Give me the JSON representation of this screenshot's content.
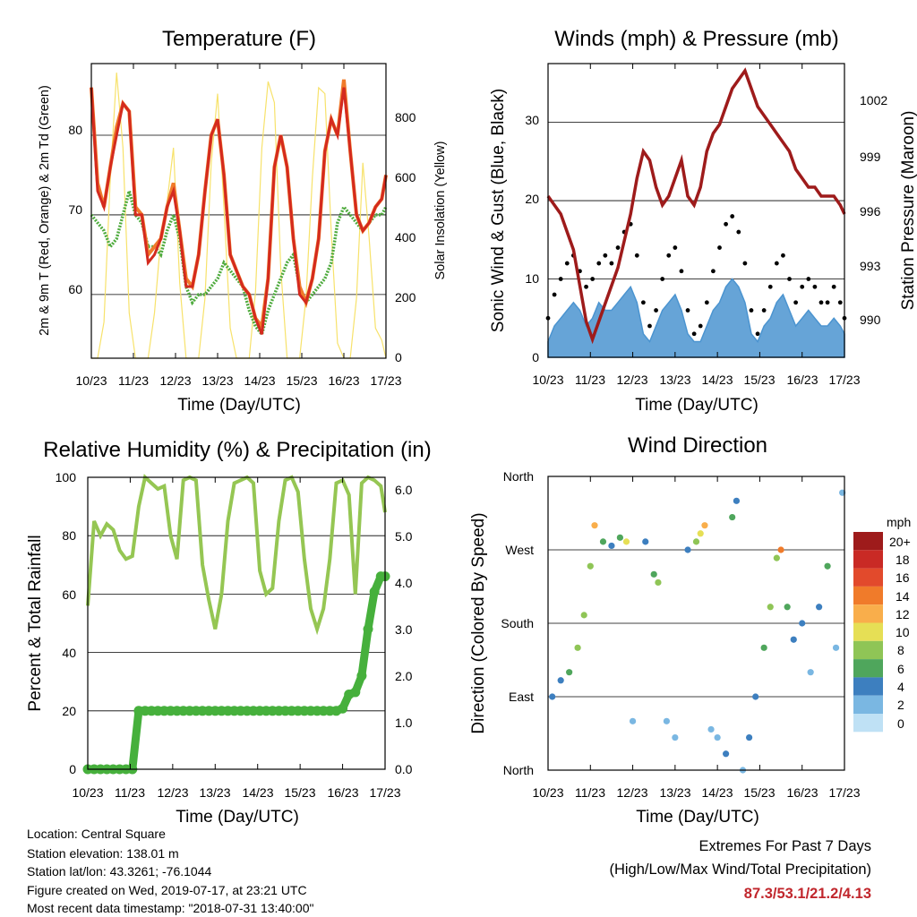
{
  "colors": {
    "temp2m": "#d42a1e",
    "temp9m": "#f07b2a",
    "dewpoint": "#4fab3e",
    "solar": "#f7e26b",
    "gust": "#000000",
    "wind": "#4b94d0",
    "pressure": "#9e1b1b",
    "rh": "#95c653",
    "precip": "#46b03c",
    "extremes_text": "#c1272d"
  },
  "panels": {
    "temperature": {
      "title": "Temperature (F)",
      "xlabel": "Time (Day/UTC)",
      "ylabel_left": "2m & 9m T (Red, Orange) & 2m Td (Green)",
      "ylabel_right": "Solar Insolation (Yellow)",
      "x_ticks": [
        "10/23",
        "11/23",
        "12/23",
        "13/23",
        "14/23",
        "15/23",
        "16/23",
        "17/23"
      ],
      "y_left_ticks": [
        "60",
        "70",
        "80"
      ],
      "y_right_ticks": [
        "0",
        "200",
        "400",
        "600",
        "800"
      ]
    },
    "winds": {
      "title": "Winds (mph) & Pressure (mb)",
      "xlabel": "Time (Day/UTC)",
      "ylabel_left": "Sonic Wind & Gust (Blue, Black)",
      "ylabel_right": "Station Pressure (Maroon)",
      "x_ticks": [
        "10/23",
        "11/23",
        "12/23",
        "13/23",
        "14/23",
        "15/23",
        "16/23",
        "17/23"
      ],
      "y_left_ticks": [
        "0",
        "10",
        "20",
        "30"
      ],
      "y_right_ticks": [
        "990",
        "993",
        "996",
        "999",
        "1002"
      ]
    },
    "humidity": {
      "title": "Relative Humidity (%) & Precipitation (in)",
      "xlabel": "Time (Day/UTC)",
      "ylabel_left": "Percent & Total Rainfall",
      "x_ticks": [
        "10/23",
        "11/23",
        "12/23",
        "13/23",
        "14/23",
        "15/23",
        "16/23",
        "17/23"
      ],
      "y_left_ticks": [
        "0",
        "20",
        "40",
        "60",
        "80",
        "100"
      ],
      "y_right_ticks": [
        "0.0",
        "1.0",
        "2.0",
        "3.0",
        "4.0",
        "5.0",
        "6.0"
      ]
    },
    "direction": {
      "title": "Wind Direction",
      "xlabel": "Time (Day/UTC)",
      "ylabel_left": "Direction (Colored By Speed)",
      "x_ticks": [
        "10/23",
        "11/23",
        "12/23",
        "13/23",
        "14/23",
        "15/23",
        "16/23",
        "17/23"
      ],
      "y_left_ticks": [
        "North",
        "East",
        "South",
        "West",
        "North"
      ],
      "legend_title": "mph",
      "legend_labels": [
        "20+",
        "18",
        "16",
        "14",
        "12",
        "10",
        "8",
        "6",
        "4",
        "2",
        "0"
      ],
      "legend_colors": [
        "#9e1b1b",
        "#c92a25",
        "#e24a2c",
        "#f07b2a",
        "#f9ae4b",
        "#e6df55",
        "#8fc556",
        "#4fa65c",
        "#3d7fbf",
        "#7ab7e2",
        "#bfe1f5"
      ]
    }
  },
  "chart_data": [
    {
      "type": "line",
      "title": "Temperature (F)",
      "xlabel": "Time (Day/UTC)",
      "ylabel": "2m & 9m T (Red, Orange) & 2m Td (Green)",
      "ylabel_right": "Solar Insolation (Yellow)",
      "xlim": [
        "10/23",
        "17/23"
      ],
      "ylim": [
        52,
        89
      ],
      "ylim_right": [
        0,
        980
      ],
      "x_days": [
        0,
        0.15,
        0.3,
        0.45,
        0.6,
        0.75,
        0.9,
        1.05,
        1.2,
        1.35,
        1.5,
        1.65,
        1.8,
        1.95,
        2.1,
        2.25,
        2.4,
        2.55,
        2.7,
        2.85,
        3.0,
        3.15,
        3.3,
        3.45,
        3.6,
        3.75,
        3.9,
        4.05,
        4.2,
        4.35,
        4.5,
        4.65,
        4.8,
        4.95,
        5.1,
        5.25,
        5.4,
        5.55,
        5.7,
        5.85,
        6.0,
        6.15,
        6.3,
        6.45,
        6.6,
        6.75,
        6.9,
        7.0
      ],
      "series": [
        {
          "name": "2m T",
          "values": [
            86,
            73,
            71,
            76,
            80,
            84,
            83,
            70,
            70,
            64,
            65,
            67,
            71,
            73,
            68,
            61,
            61,
            65,
            73,
            80,
            82,
            75,
            65,
            63,
            61,
            60,
            57,
            55,
            62,
            76,
            80,
            76,
            67,
            60,
            59,
            62,
            67,
            78,
            82,
            80,
            86,
            78,
            70,
            68,
            69,
            71,
            72,
            75
          ]
        },
        {
          "name": "9m T",
          "values": [
            86,
            74,
            71,
            76,
            81,
            84,
            83,
            71,
            70,
            65,
            66,
            67,
            71,
            74,
            68,
            62,
            61,
            65,
            73,
            80,
            82,
            75,
            65,
            63,
            61,
            60,
            57,
            56,
            62,
            76,
            80,
            76,
            67,
            61,
            59,
            62,
            67,
            78,
            82,
            80,
            87,
            78,
            70,
            68,
            69,
            71,
            72,
            75
          ]
        },
        {
          "name": "2m Td",
          "values": [
            70,
            69,
            68,
            66,
            67,
            70,
            73,
            70,
            69,
            66,
            66,
            65,
            68,
            70,
            67,
            61,
            59,
            60,
            60,
            61,
            62,
            64,
            63,
            62,
            61,
            58,
            56,
            55,
            58,
            60,
            62,
            64,
            65,
            61,
            59,
            60,
            61,
            62,
            64,
            69,
            71,
            70,
            69,
            68,
            69,
            70,
            70,
            71
          ]
        },
        {
          "name": "Solar Insolation",
          "axis": "right",
          "values": [
            0,
            0,
            120,
            600,
            950,
            700,
            150,
            0,
            0,
            0,
            150,
            400,
            520,
            700,
            250,
            0,
            0,
            0,
            200,
            650,
            880,
            500,
            100,
            0,
            0,
            0,
            220,
            700,
            920,
            850,
            300,
            0,
            0,
            0,
            200,
            600,
            900,
            880,
            420,
            50,
            0,
            0,
            200,
            650,
            400,
            100,
            60,
            0
          ]
        }
      ]
    },
    {
      "type": "line",
      "title": "Winds (mph) & Pressure (mb)",
      "xlabel": "Time (Day/UTC)",
      "ylabel": "Sonic Wind & Gust (Blue, Black)",
      "ylabel_right": "Station Pressure (Maroon)",
      "xlim": [
        "10/23",
        "17/23"
      ],
      "ylim": [
        0,
        37.5
      ],
      "ylim_right": [
        988,
        1004.4
      ],
      "x_days": [
        0,
        0.15,
        0.3,
        0.45,
        0.6,
        0.75,
        0.9,
        1.05,
        1.2,
        1.35,
        1.5,
        1.65,
        1.8,
        1.95,
        2.1,
        2.25,
        2.4,
        2.55,
        2.7,
        2.85,
        3.0,
        3.15,
        3.3,
        3.45,
        3.6,
        3.75,
        3.9,
        4.05,
        4.2,
        4.35,
        4.5,
        4.65,
        4.8,
        4.95,
        5.1,
        5.25,
        5.4,
        5.55,
        5.7,
        5.85,
        6.0,
        6.15,
        6.3,
        6.45,
        6.6,
        6.75,
        6.9,
        7.0
      ],
      "series": [
        {
          "name": "Sonic Wind",
          "values": [
            2,
            4,
            5,
            6,
            7,
            6,
            4,
            5,
            7,
            6,
            6,
            7,
            8,
            9,
            7,
            3,
            2,
            4,
            6,
            7,
            8,
            6,
            3,
            2,
            2,
            4,
            6,
            7,
            9,
            10,
            9,
            7,
            3,
            2,
            4,
            5,
            7,
            8,
            6,
            4,
            5,
            6,
            5,
            4,
            4,
            5,
            4,
            3
          ]
        },
        {
          "name": "Gust",
          "values": [
            5,
            8,
            10,
            12,
            13,
            11,
            9,
            10,
            12,
            13,
            12,
            14,
            16,
            17,
            13,
            7,
            4,
            6,
            10,
            13,
            14,
            11,
            6,
            3,
            4,
            7,
            11,
            14,
            17,
            18,
            16,
            12,
            6,
            3,
            6,
            9,
            12,
            13,
            10,
            7,
            9,
            10,
            9,
            7,
            7,
            9,
            7,
            5
          ]
        },
        {
          "name": "Station Pressure",
          "axis": "right",
          "values": [
            997,
            996.5,
            996,
            995,
            994,
            992,
            990,
            989,
            990,
            991,
            992,
            993,
            994.5,
            996,
            998,
            999.5,
            999,
            997.5,
            996.5,
            997,
            998,
            999,
            997,
            996.5,
            997.5,
            999.5,
            1000.5,
            1001,
            1002,
            1003,
            1003.5,
            1004,
            1003,
            1002,
            1001.5,
            1001,
            1000.5,
            1000,
            999.5,
            998.5,
            998,
            997.5,
            997.5,
            997,
            997,
            997,
            996.5,
            996
          ]
        }
      ]
    },
    {
      "type": "line",
      "title": "Relative Humidity (%) & Precipitation (in)",
      "xlabel": "Time (Day/UTC)",
      "ylabel": "Percent & Total Rainfall",
      "xlim": [
        "10/23",
        "17/23"
      ],
      "ylim": [
        0,
        100
      ],
      "ylim_right": [
        0,
        6.25
      ],
      "x_days": [
        0,
        0.15,
        0.3,
        0.45,
        0.6,
        0.75,
        0.9,
        1.05,
        1.2,
        1.35,
        1.5,
        1.65,
        1.8,
        1.95,
        2.1,
        2.25,
        2.4,
        2.55,
        2.7,
        2.85,
        3.0,
        3.15,
        3.3,
        3.45,
        3.6,
        3.75,
        3.9,
        4.05,
        4.2,
        4.35,
        4.5,
        4.65,
        4.8,
        4.95,
        5.1,
        5.25,
        5.4,
        5.55,
        5.7,
        5.85,
        6.0,
        6.15,
        6.3,
        6.45,
        6.6,
        6.75,
        6.9,
        7.0
      ],
      "series": [
        {
          "name": "Relative Humidity",
          "values": [
            56,
            85,
            80,
            84,
            82,
            75,
            72,
            73,
            90,
            100,
            98,
            96,
            97,
            80,
            72,
            99,
            100,
            99,
            70,
            58,
            48,
            60,
            85,
            98,
            99,
            100,
            98,
            68,
            60,
            62,
            85,
            99,
            100,
            95,
            72,
            55,
            48,
            55,
            72,
            98,
            99,
            94,
            60,
            98,
            100,
            99,
            97,
            88
          ]
        },
        {
          "name": "Total Precipitation",
          "axis": "right",
          "values": [
            0,
            0,
            0,
            0,
            0,
            0,
            0,
            0,
            1.25,
            1.25,
            1.25,
            1.25,
            1.25,
            1.25,
            1.25,
            1.25,
            1.25,
            1.25,
            1.25,
            1.25,
            1.25,
            1.25,
            1.25,
            1.25,
            1.25,
            1.25,
            1.25,
            1.25,
            1.25,
            1.25,
            1.25,
            1.25,
            1.25,
            1.25,
            1.25,
            1.25,
            1.25,
            1.25,
            1.25,
            1.25,
            1.3,
            1.6,
            1.65,
            2.0,
            3.0,
            3.8,
            4.13,
            4.13
          ]
        }
      ]
    },
    {
      "type": "scatter",
      "title": "Wind Direction",
      "xlabel": "Time (Day/UTC)",
      "ylabel": "Direction (Colored By Speed)",
      "xlim": [
        "10/23",
        "17/23"
      ],
      "yticks": [
        "North",
        "East",
        "South",
        "West",
        "North"
      ],
      "colorbar": {
        "title": "mph",
        "levels": [
          "0",
          "2",
          "4",
          "6",
          "8",
          "10",
          "12",
          "14",
          "16",
          "18",
          "20+"
        ]
      },
      "points": [
        {
          "day": 0.1,
          "dir": 90,
          "mph": 4
        },
        {
          "day": 0.3,
          "dir": 110,
          "mph": 4
        },
        {
          "day": 0.5,
          "dir": 120,
          "mph": 6
        },
        {
          "day": 0.7,
          "dir": 150,
          "mph": 8
        },
        {
          "day": 0.85,
          "dir": 190,
          "mph": 8
        },
        {
          "day": 1.0,
          "dir": 250,
          "mph": 8
        },
        {
          "day": 1.1,
          "dir": 300,
          "mph": 12
        },
        {
          "day": 1.3,
          "dir": 280,
          "mph": 6
        },
        {
          "day": 1.5,
          "dir": 275,
          "mph": 4
        },
        {
          "day": 1.7,
          "dir": 285,
          "mph": 6
        },
        {
          "day": 1.85,
          "dir": 280,
          "mph": 10
        },
        {
          "day": 2.0,
          "dir": 60,
          "mph": 2
        },
        {
          "day": 2.3,
          "dir": 280,
          "mph": 4
        },
        {
          "day": 2.5,
          "dir": 240,
          "mph": 6
        },
        {
          "day": 2.6,
          "dir": 230,
          "mph": 8
        },
        {
          "day": 2.8,
          "dir": 60,
          "mph": 2
        },
        {
          "day": 3.0,
          "dir": 40,
          "mph": 2
        },
        {
          "day": 3.3,
          "dir": 270,
          "mph": 4
        },
        {
          "day": 3.5,
          "dir": 280,
          "mph": 8
        },
        {
          "day": 3.6,
          "dir": 290,
          "mph": 10
        },
        {
          "day": 3.7,
          "dir": 300,
          "mph": 12
        },
        {
          "day": 3.85,
          "dir": 50,
          "mph": 2
        },
        {
          "day": 4.0,
          "dir": 40,
          "mph": 2
        },
        {
          "day": 4.2,
          "dir": 20,
          "mph": 4
        },
        {
          "day": 4.35,
          "dir": 310,
          "mph": 6
        },
        {
          "day": 4.45,
          "dir": 330,
          "mph": 4
        },
        {
          "day": 4.6,
          "dir": 0,
          "mph": 2
        },
        {
          "day": 4.75,
          "dir": 40,
          "mph": 4
        },
        {
          "day": 4.9,
          "dir": 90,
          "mph": 4
        },
        {
          "day": 5.1,
          "dir": 150,
          "mph": 6
        },
        {
          "day": 5.25,
          "dir": 200,
          "mph": 8
        },
        {
          "day": 5.4,
          "dir": 260,
          "mph": 8
        },
        {
          "day": 5.5,
          "dir": 270,
          "mph": 14
        },
        {
          "day": 5.65,
          "dir": 200,
          "mph": 6
        },
        {
          "day": 5.8,
          "dir": 160,
          "mph": 4
        },
        {
          "day": 6.0,
          "dir": 180,
          "mph": 4
        },
        {
          "day": 6.2,
          "dir": 120,
          "mph": 2
        },
        {
          "day": 6.4,
          "dir": 200,
          "mph": 4
        },
        {
          "day": 6.6,
          "dir": 250,
          "mph": 6
        },
        {
          "day": 6.8,
          "dir": 150,
          "mph": 2
        },
        {
          "day": 6.95,
          "dir": 340,
          "mph": 2
        }
      ]
    }
  ],
  "footer": {
    "location": "Location: Central Square",
    "elevation": "Station elevation: 138.01 m",
    "latlon": "Station lat/lon: 43.3261; -76.1044",
    "created": "Figure created on Wed, 2019-07-17, at 23:21 UTC",
    "timestamp": "Most recent data timestamp: \"2018-07-31 13:40:00\""
  },
  "extremes": {
    "title": "Extremes For Past 7 Days",
    "subtitle": "(High/Low/Max Wind/Total Precipitation)",
    "values": "87.3/53.1/21.2/4.13"
  }
}
